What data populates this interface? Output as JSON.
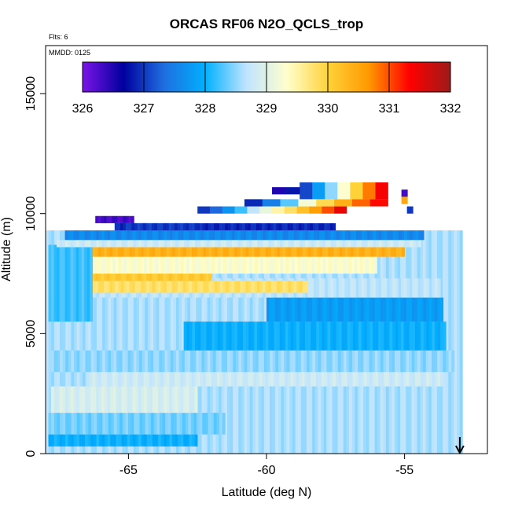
{
  "chart_data": {
    "type": "heatmap",
    "title": "ORCAS RF06 N2O_QCLS_trop",
    "note_flights": "Flts: 6",
    "note_date": "MMDD: 0125",
    "xlabel": "Latitude (deg N)",
    "ylabel": "Altitude (m)",
    "xlim": [
      -68,
      -52
    ],
    "ylim": [
      0,
      17000
    ],
    "x_ticks": [
      -65,
      -60,
      -55
    ],
    "x_tick_labels": [
      "-65",
      "-60",
      "-55"
    ],
    "y_ticks": [
      0,
      5000,
      10000,
      15000
    ],
    "y_tick_labels": [
      "0",
      "5000",
      "10000",
      "15000"
    ],
    "colorbar": {
      "range": [
        326,
        332
      ],
      "ticks": [
        326,
        327,
        328,
        329,
        330,
        331,
        332
      ],
      "tick_labels": [
        "326",
        "327",
        "328",
        "329",
        "330",
        "331",
        "332"
      ],
      "colors": [
        "#7a14e6",
        "#00009e",
        "#1f6fe0",
        "#00b0ff",
        "#bfe4ff",
        "#ffffcc",
        "#ffd23a",
        "#ff9900",
        "#ff0000",
        "#9e1a1a"
      ]
    },
    "arrow": {
      "x": -53,
      "direction": "down"
    },
    "bands": [
      {
        "lat_start": -68,
        "lat_end": -52.9,
        "alt_bottom": 0,
        "alt_top": 9300,
        "value": 328.6
      },
      {
        "lat_start": -67.9,
        "lat_end": -62.5,
        "alt_bottom": 300,
        "alt_top": 800,
        "value": 328.0
      },
      {
        "lat_start": -67.9,
        "lat_end": -61.5,
        "alt_bottom": 800,
        "alt_top": 1700,
        "value": 328.4
      },
      {
        "lat_start": -67.8,
        "lat_end": -62.5,
        "alt_bottom": 1700,
        "alt_top": 2800,
        "value": 328.9
      },
      {
        "lat_start": -66.5,
        "lat_end": -53.5,
        "alt_bottom": 2800,
        "alt_top": 3400,
        "value": 328.8
      },
      {
        "lat_start": -67.9,
        "lat_end": -53.2,
        "alt_bottom": 3400,
        "alt_top": 4300,
        "value": 328.5
      },
      {
        "lat_start": -63.0,
        "lat_end": -53.5,
        "alt_bottom": 4300,
        "alt_top": 5500,
        "value": 328.0
      },
      {
        "lat_start": -60.0,
        "lat_end": -53.6,
        "alt_bottom": 5500,
        "alt_top": 6500,
        "value": 327.8
      },
      {
        "lat_start": -67.9,
        "lat_end": -53.7,
        "alt_bottom": 6500,
        "alt_top": 7300,
        "value": 328.7
      },
      {
        "lat_start": -66.3,
        "lat_end": -58.5,
        "alt_bottom": 6700,
        "alt_top": 7200,
        "value": 329.8
      },
      {
        "lat_start": -66.3,
        "lat_end": -62.0,
        "alt_bottom": 7200,
        "alt_top": 7500,
        "value": 330.1
      },
      {
        "lat_start": -66.5,
        "lat_end": -56.0,
        "alt_bottom": 7500,
        "alt_top": 8500,
        "value": 329.3
      },
      {
        "lat_start": -66.3,
        "lat_end": -55.0,
        "alt_bottom": 8200,
        "alt_top": 8600,
        "value": 330.4
      },
      {
        "lat_start": -67.9,
        "lat_end": -66.3,
        "alt_bottom": 5500,
        "alt_top": 8700,
        "value": 328.2
      },
      {
        "lat_start": -67.6,
        "lat_end": -54.4,
        "alt_bottom": 8600,
        "alt_top": 8900,
        "value": 328.8
      },
      {
        "lat_start": -67.3,
        "lat_end": -54.3,
        "alt_bottom": 8900,
        "alt_top": 9300,
        "value": 327.6
      },
      {
        "lat_start": -65.5,
        "lat_end": -57.5,
        "alt_bottom": 9300,
        "alt_top": 9600,
        "value": 326.9
      },
      {
        "lat_start": -66.2,
        "lat_end": -64.8,
        "alt_bottom": 9600,
        "alt_top": 9900,
        "value": 326.3
      },
      {
        "lat_start": -65.2,
        "lat_end": -62.5,
        "alt_bottom": 9300,
        "alt_top": 9600,
        "value": 327.0
      }
    ],
    "upper_segment": {
      "alt_bottom": 10000,
      "alt_top": 10300,
      "lat_start": -62.5,
      "lat_end": -57.1,
      "values": [
        327.0,
        327.3,
        327.7,
        328.2,
        328.7,
        329.1,
        329.5,
        329.8,
        330.2,
        330.6,
        331.0,
        331.5
      ]
    },
    "upper_segment_2": {
      "alt_bottom": 10300,
      "alt_top": 10600,
      "lat_start": -60.8,
      "lat_end": -55.6,
      "values": [
        326.9,
        327.5,
        328.3,
        329.2,
        329.9,
        330.4,
        330.9,
        331.3
      ]
    },
    "upper_segment_3": {
      "alt_bottom": 10600,
      "alt_top": 11300,
      "lat_start": -58.8,
      "lat_end": -55.6,
      "values": [
        327.1,
        327.8,
        328.5,
        329.3,
        330.0,
        330.8,
        331.4
      ]
    },
    "upper_segment_4": {
      "alt_bottom": 10800,
      "alt_top": 11100,
      "lat_start": -59.8,
      "lat_end": -58.8,
      "values": [
        326.5,
        326.8
      ]
    },
    "tail_points": [
      {
        "lat": -55.0,
        "alt_bottom": 10700,
        "alt_top": 11000,
        "value": 326.3
      },
      {
        "lat": -55.0,
        "alt_bottom": 10400,
        "alt_top": 10700,
        "value": 330.5
      },
      {
        "lat": -54.8,
        "alt_bottom": 10000,
        "alt_top": 10300,
        "value": 327.0
      }
    ],
    "grid": false,
    "legend": "top-inside"
  }
}
